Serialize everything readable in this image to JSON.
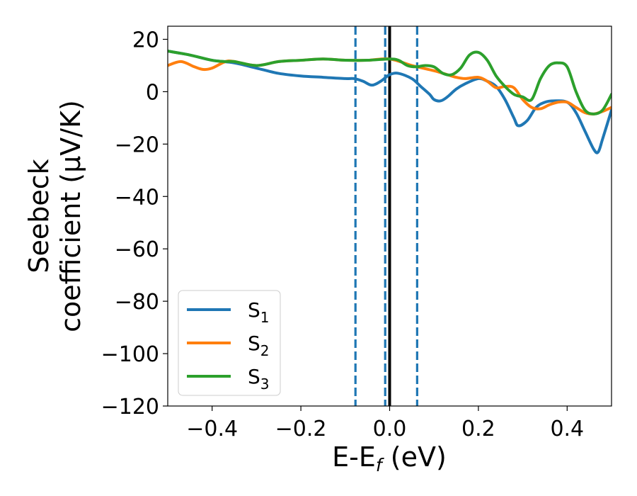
{
  "chart_data": {
    "type": "line",
    "title": "",
    "xlabel": {
      "main": "E-E",
      "sub": "f",
      "unit": " (eV)"
    },
    "ylabel": {
      "line1": "Seebeck",
      "line2": "coefficient  (μV/K)"
    },
    "xlim": [
      -0.5,
      0.5
    ],
    "ylim": [
      -120,
      25
    ],
    "xticks": [
      -0.4,
      -0.2,
      0.0,
      0.2,
      0.4
    ],
    "xtick_labels": [
      "−0.4",
      "−0.2",
      "0.0",
      "0.2",
      "0.4"
    ],
    "yticks": [
      20,
      0,
      -20,
      -40,
      -60,
      -80,
      -100,
      -120
    ],
    "ytick_labels": [
      "20",
      "0",
      "−20",
      "−40",
      "−60",
      "−80",
      "−100",
      "−120"
    ],
    "legend_position": "lower-left",
    "vlines": [
      {
        "x": -0.077,
        "style": "dashed",
        "color": "#1f77b4"
      },
      {
        "x": -0.01,
        "style": "dashed",
        "color": "#1f77b4"
      },
      {
        "x": 0.0,
        "style": "solid",
        "color": "#000000"
      },
      {
        "x": 0.062,
        "style": "dashed",
        "color": "#1f77b4"
      }
    ],
    "series": [
      {
        "name": "S",
        "sub": "1",
        "color": "#1f77b4",
        "x": [
          -0.5,
          -0.45,
          -0.4,
          -0.35,
          -0.3,
          -0.25,
          -0.2,
          -0.15,
          -0.1,
          -0.08,
          -0.06,
          -0.04,
          -0.02,
          0.0,
          0.02,
          0.05,
          0.07,
          0.09,
          0.1,
          0.115,
          0.13,
          0.15,
          0.17,
          0.2,
          0.22,
          0.24,
          0.26,
          0.28,
          0.29,
          0.31,
          0.33,
          0.35,
          0.37,
          0.4,
          0.42,
          0.44,
          0.46,
          0.47,
          0.48,
          0.5
        ],
        "values": [
          15.5,
          14,
          12,
          11,
          9,
          7,
          6,
          5.5,
          5,
          5,
          4,
          2.5,
          4,
          6.5,
          7,
          5,
          2,
          -1,
          -3,
          -3.5,
          -2,
          1,
          3,
          5,
          4,
          2,
          -3,
          -10,
          -13,
          -11,
          -6,
          -4,
          -3.5,
          -4,
          -8,
          -15,
          -22,
          -23,
          -18,
          -7
        ]
      },
      {
        "name": "S",
        "sub": "2",
        "color": "#ff7f0e",
        "x": [
          -0.5,
          -0.47,
          -0.44,
          -0.42,
          -0.4,
          -0.37,
          -0.35,
          -0.3,
          -0.25,
          -0.2,
          -0.15,
          -0.1,
          -0.05,
          0.0,
          0.05,
          0.1,
          0.13,
          0.15,
          0.17,
          0.2,
          0.22,
          0.24,
          0.26,
          0.28,
          0.3,
          0.32,
          0.34,
          0.36,
          0.38,
          0.4,
          0.42,
          0.44,
          0.46,
          0.48,
          0.5
        ],
        "values": [
          10,
          11.5,
          9.5,
          8.5,
          9,
          11.5,
          11.5,
          10,
          11.5,
          12,
          12.5,
          12,
          12,
          12.5,
          10,
          8,
          6.5,
          5.5,
          5,
          5.5,
          4,
          1.5,
          2,
          1.5,
          -3,
          -6,
          -6.5,
          -5,
          -4,
          -4,
          -6,
          -8,
          -8.5,
          -7.5,
          -6
        ]
      },
      {
        "name": "S",
        "sub": "3",
        "color": "#2ca02c",
        "x": [
          -0.5,
          -0.45,
          -0.4,
          -0.37,
          -0.35,
          -0.3,
          -0.25,
          -0.2,
          -0.15,
          -0.1,
          -0.05,
          0.0,
          0.02,
          0.04,
          0.06,
          0.08,
          0.1,
          0.12,
          0.14,
          0.16,
          0.18,
          0.2,
          0.22,
          0.24,
          0.26,
          0.28,
          0.3,
          0.32,
          0.34,
          0.36,
          0.38,
          0.4,
          0.42,
          0.44,
          0.46,
          0.48,
          0.5
        ],
        "values": [
          15.5,
          14,
          12,
          11.5,
          11.5,
          10,
          11.5,
          12,
          12.5,
          12,
          12,
          12.5,
          12,
          10,
          9.5,
          10,
          9.5,
          7,
          6.5,
          9,
          14,
          15,
          12,
          6,
          2,
          -1,
          -2,
          -3,
          5,
          10,
          11,
          9.5,
          0,
          -7,
          -8.5,
          -7,
          -1
        ]
      }
    ]
  }
}
